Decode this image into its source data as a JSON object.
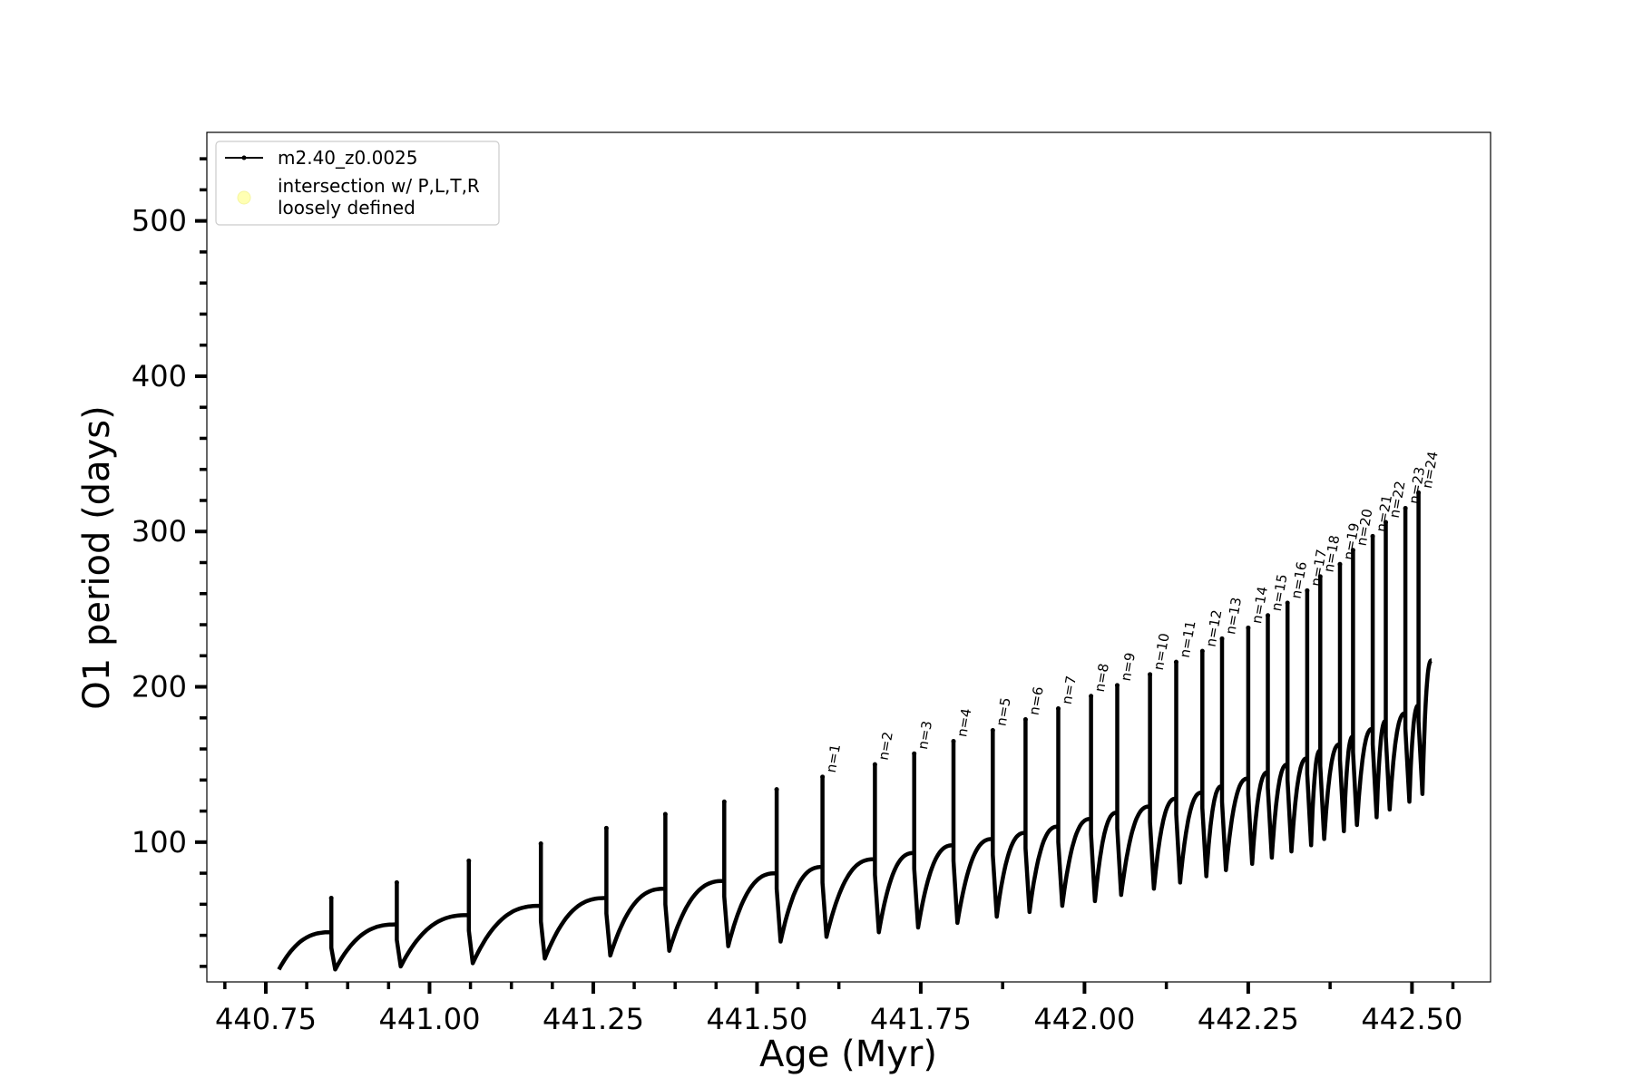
{
  "chart_data": {
    "type": "line",
    "xlabel": "Age (Myr)",
    "ylabel": "O1 period (days)",
    "xlim": [
      440.66,
      442.62
    ],
    "ylim": [
      10,
      557
    ],
    "x_ticks": [
      440.75,
      441.0,
      441.25,
      441.5,
      441.75,
      442.0,
      442.25,
      442.5
    ],
    "x_tick_labels": [
      "440.75",
      "441.00",
      "441.25",
      "441.50",
      "441.75",
      "442.00",
      "442.25",
      "442.50"
    ],
    "y_ticks": [
      100,
      200,
      300,
      400,
      500
    ],
    "y_tick_labels": [
      "100",
      "200",
      "300",
      "400",
      "500"
    ],
    "legend": {
      "placement": "upper-left",
      "entries": [
        {
          "label": "m2.40_z0.0025",
          "color": "#000000",
          "marker": "line"
        },
        {
          "label_lines": [
            "intersection w/ P,L,T,R",
            "loosely defined"
          ],
          "color": "#ffffb3",
          "marker": "circle"
        }
      ]
    },
    "series": [
      {
        "name": "m2.40_z0.0025",
        "color": "#000000",
        "start": {
          "x": 440.77,
          "y": 18
        },
        "end": {
          "x": 442.53,
          "y": 217
        },
        "pulses": [
          {
            "x": 440.85,
            "pre": 42,
            "peak": 64,
            "min": 18
          },
          {
            "x": 440.95,
            "pre": 47,
            "peak": 74,
            "min": 20
          },
          {
            "x": 441.06,
            "pre": 53,
            "peak": 88,
            "min": 22
          },
          {
            "x": 441.17,
            "pre": 59,
            "peak": 99,
            "min": 25
          },
          {
            "x": 441.27,
            "pre": 64,
            "peak": 109,
            "min": 27
          },
          {
            "x": 441.36,
            "pre": 70,
            "peak": 118,
            "min": 30
          },
          {
            "x": 441.45,
            "pre": 75,
            "peak": 126,
            "min": 33
          },
          {
            "x": 441.53,
            "pre": 80,
            "peak": 134,
            "min": 36
          },
          {
            "x": 441.6,
            "pre": 84,
            "peak": 142,
            "min": 39,
            "label": "n=1"
          },
          {
            "x": 441.68,
            "pre": 89,
            "peak": 150,
            "min": 42,
            "label": "n=2"
          },
          {
            "x": 441.74,
            "pre": 93,
            "peak": 157,
            "min": 45,
            "label": "n=3"
          },
          {
            "x": 441.8,
            "pre": 98,
            "peak": 165,
            "min": 48,
            "label": "n=4"
          },
          {
            "x": 441.86,
            "pre": 102,
            "peak": 172,
            "min": 52,
            "label": "n=5"
          },
          {
            "x": 441.91,
            "pre": 106,
            "peak": 179,
            "min": 55,
            "label": "n=6"
          },
          {
            "x": 441.96,
            "pre": 110,
            "peak": 186,
            "min": 59,
            "label": "n=7"
          },
          {
            "x": 442.01,
            "pre": 115,
            "peak": 194,
            "min": 62,
            "label": "n=8"
          },
          {
            "x": 442.05,
            "pre": 119,
            "peak": 201,
            "min": 66,
            "label": "n=9"
          },
          {
            "x": 442.1,
            "pre": 123,
            "peak": 208,
            "min": 70,
            "label": "n=10"
          },
          {
            "x": 442.14,
            "pre": 128,
            "peak": 216,
            "min": 74,
            "label": "n=11"
          },
          {
            "x": 442.18,
            "pre": 132,
            "peak": 223,
            "min": 78,
            "label": "n=12"
          },
          {
            "x": 442.21,
            "pre": 136,
            "peak": 231,
            "min": 82,
            "label": "n=13"
          },
          {
            "x": 442.25,
            "pre": 141,
            "peak": 238,
            "min": 86,
            "label": "n=14"
          },
          {
            "x": 442.28,
            "pre": 145,
            "peak": 246,
            "min": 90,
            "label": "n=15"
          },
          {
            "x": 442.31,
            "pre": 150,
            "peak": 254,
            "min": 94,
            "label": "n=16"
          },
          {
            "x": 442.34,
            "pre": 154,
            "peak": 262,
            "min": 98,
            "label": "n=17"
          },
          {
            "x": 442.36,
            "pre": 159,
            "peak": 271,
            "min": 102,
            "label": "n=18"
          },
          {
            "x": 442.39,
            "pre": 163,
            "peak": 279,
            "min": 107,
            "label": "n=19"
          },
          {
            "x": 442.41,
            "pre": 168,
            "peak": 288,
            "min": 111,
            "label": "n=20"
          },
          {
            "x": 442.44,
            "pre": 173,
            "peak": 297,
            "min": 116,
            "label": "n=21"
          },
          {
            "x": 442.46,
            "pre": 178,
            "peak": 306,
            "min": 121,
            "label": "n=22"
          },
          {
            "x": 442.49,
            "pre": 183,
            "peak": 315,
            "min": 126,
            "label": "n=23"
          },
          {
            "x": 442.51,
            "pre": 188,
            "peak": 325,
            "min": 131,
            "label": "n=24"
          }
        ]
      }
    ]
  }
}
